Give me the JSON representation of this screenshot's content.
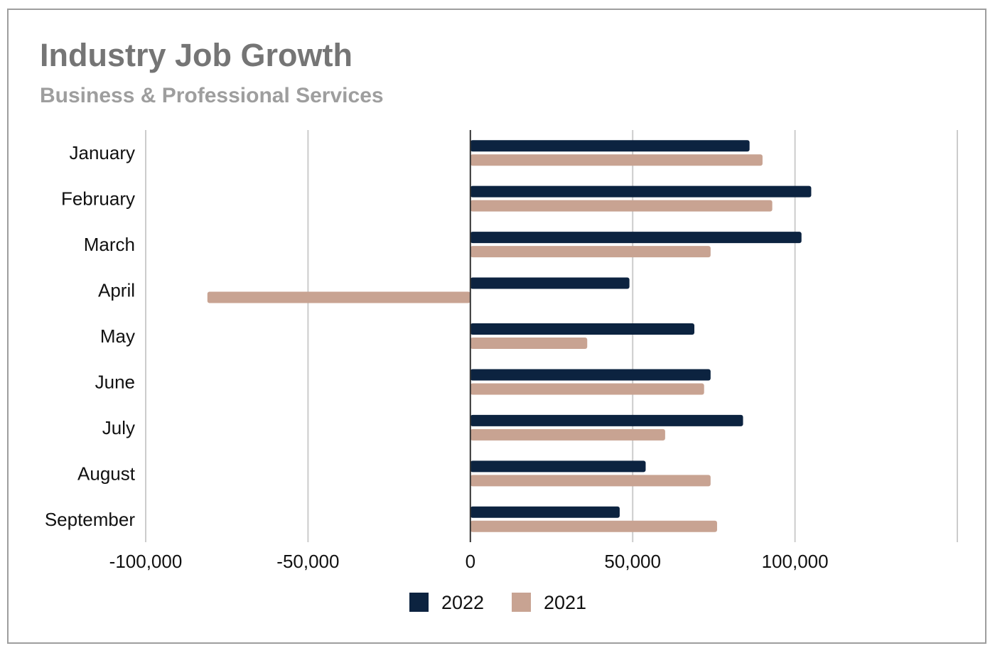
{
  "chart_data": {
    "type": "bar",
    "orientation": "horizontal",
    "title": "Industry Job Growth",
    "subtitle": "Business & Professional Services",
    "xlabel": "",
    "ylabel": "",
    "categories": [
      "January",
      "February",
      "March",
      "April",
      "May",
      "June",
      "July",
      "August",
      "September"
    ],
    "series": [
      {
        "name": "2022",
        "color": "#0c2340",
        "values": [
          86000,
          105000,
          102000,
          49000,
          69000,
          74000,
          84000,
          54000,
          46000
        ]
      },
      {
        "name": "2021",
        "color": "#c8a392",
        "values": [
          90000,
          93000,
          74000,
          -81000,
          36000,
          72000,
          60000,
          74000,
          76000
        ]
      }
    ],
    "xlim": [
      -100000,
      150000
    ],
    "xticks": [
      -100000,
      -50000,
      0,
      50000,
      100000,
      150000
    ],
    "xtick_labels": [
      "-100,000",
      "-50,000",
      "0",
      "50,000",
      "100,000",
      ""
    ],
    "grid": true,
    "legend_position": "bottom"
  }
}
